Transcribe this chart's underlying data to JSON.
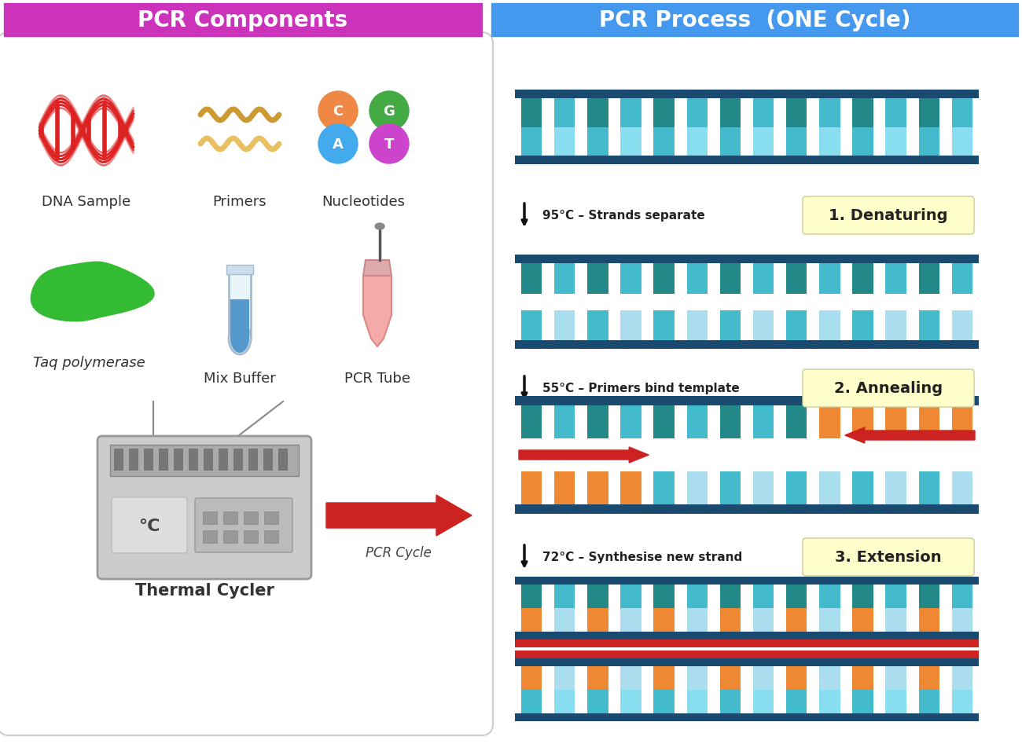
{
  "bg_color": "#f5f5f5",
  "left_header_color": "#cc33bb",
  "right_header_color": "#4499ee",
  "left_title": "PCR Components",
  "right_title": "PCR Process  (ONE Cycle)",
  "step_labels": [
    "1. Denaturing",
    "2. Annealing",
    "3. Extension"
  ],
  "step_bg_color": "#ffffcc",
  "arrow_temps": [
    "95°C – Strands separate",
    "55°C – Primers bind template",
    "72°C – Synthesise new strand"
  ],
  "col_dark_blue": "#1a4a70",
  "col_teal_dark": "#228888",
  "col_teal_mid": "#44bbcc",
  "col_teal_light": "#88ddee",
  "col_white": "#ffffff",
  "col_orange": "#ee8833",
  "col_red": "#cc2222",
  "col_light_blue": "#aaddee",
  "component_labels": [
    "DNA Sample",
    "Primers",
    "Nucleotides",
    "Taq polymerase",
    "Mix Buffer",
    "PCR Tube"
  ],
  "nuc_colors": {
    "C": "#ee8844",
    "G": "#44aa44",
    "A": "#44aaee",
    "T": "#cc44cc"
  }
}
